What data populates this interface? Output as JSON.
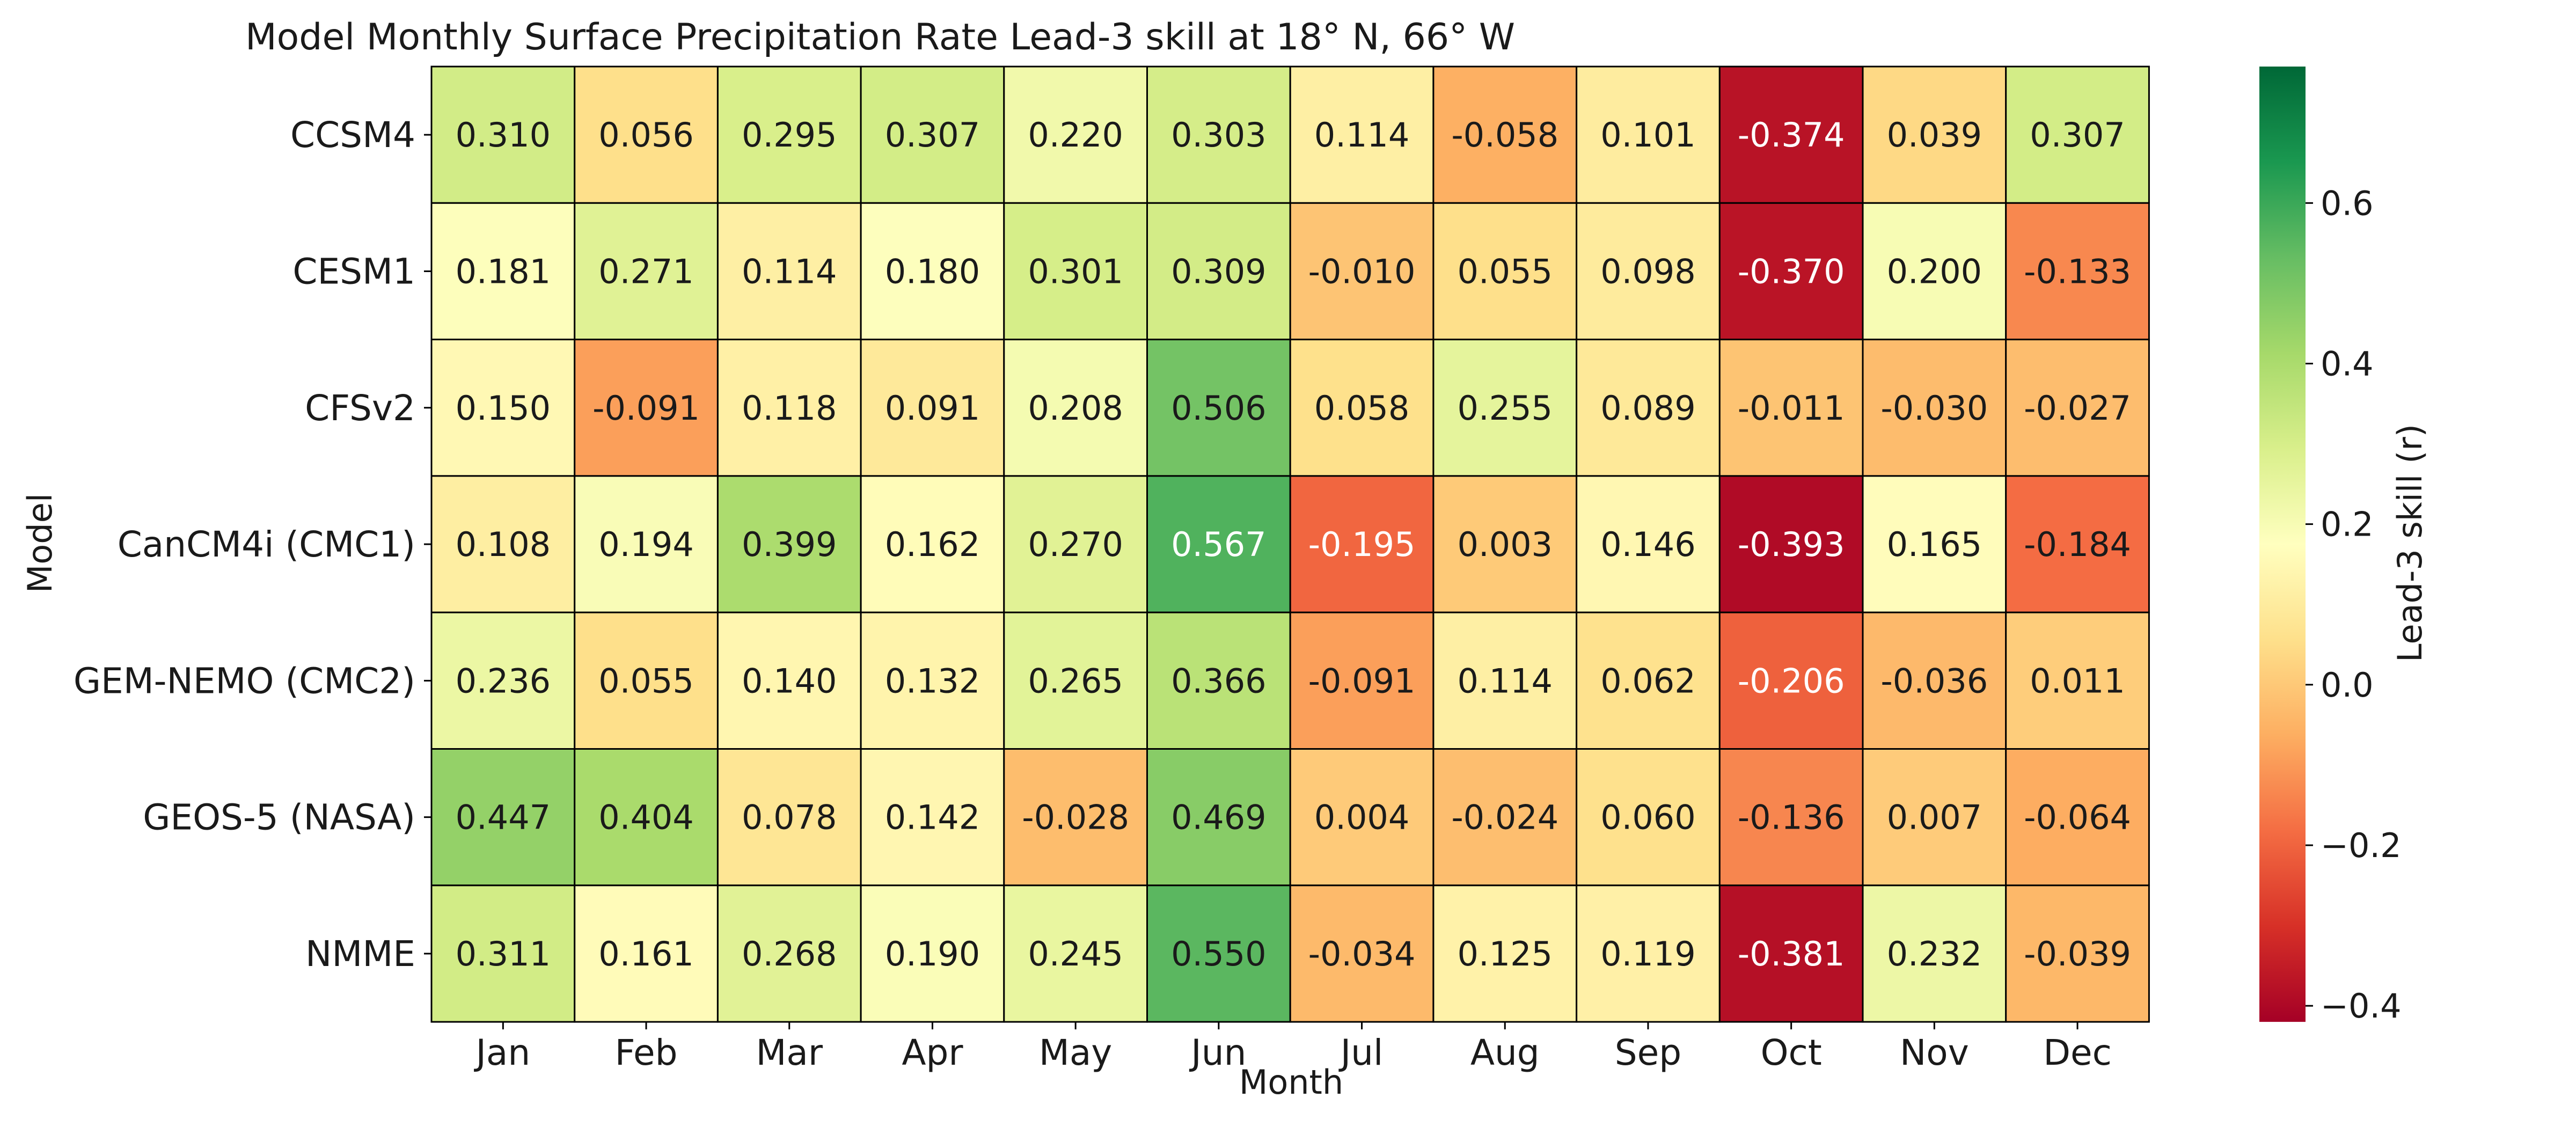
{
  "chart_data": {
    "type": "heatmap",
    "title": "Model Monthly Surface Precipitation Rate Lead-3 skill at 18° N, 66° W",
    "xlabel": "Month",
    "ylabel": "Model",
    "colorbar_label": "Lead-3 skill (r)",
    "colormap": "RdYlGn",
    "vmin": -0.42,
    "vmax": 0.77,
    "colorbar_ticks": [
      0.6,
      0.4,
      0.2,
      0.0,
      -0.2,
      -0.4
    ],
    "colorbar_tick_labels": [
      "0.6",
      "0.4",
      "0.2",
      "0.0",
      "−0.2",
      "−0.4"
    ],
    "x": [
      "Jan",
      "Feb",
      "Mar",
      "Apr",
      "May",
      "Jun",
      "Jul",
      "Aug",
      "Sep",
      "Oct",
      "Nov",
      "Dec"
    ],
    "y": [
      "CCSM4",
      "CESM1",
      "CFSv2",
      "CanCM4i (CMC1)",
      "GEM-NEMO (CMC2)",
      "GEOS-5 (NASA)",
      "NMME"
    ],
    "values": [
      [
        0.31,
        0.056,
        0.295,
        0.307,
        0.22,
        0.303,
        0.114,
        -0.058,
        0.101,
        -0.374,
        0.039,
        0.307
      ],
      [
        0.181,
        0.271,
        0.114,
        0.18,
        0.301,
        0.309,
        -0.01,
        0.055,
        0.098,
        -0.37,
        0.2,
        -0.133
      ],
      [
        0.15,
        -0.091,
        0.118,
        0.091,
        0.208,
        0.506,
        0.058,
        0.255,
        0.089,
        -0.011,
        -0.03,
        -0.027
      ],
      [
        0.108,
        0.194,
        0.399,
        0.162,
        0.27,
        0.567,
        -0.195,
        0.003,
        0.146,
        -0.393,
        0.165,
        -0.184
      ],
      [
        0.236,
        0.055,
        0.14,
        0.132,
        0.265,
        0.366,
        -0.091,
        0.114,
        0.062,
        -0.206,
        -0.036,
        0.011
      ],
      [
        0.447,
        0.404,
        0.078,
        0.142,
        -0.028,
        0.469,
        0.004,
        -0.024,
        0.06,
        -0.136,
        0.007,
        -0.064
      ],
      [
        0.311,
        0.161,
        0.268,
        0.19,
        0.245,
        0.55,
        -0.034,
        0.125,
        0.119,
        -0.381,
        0.232,
        -0.039
      ]
    ]
  }
}
